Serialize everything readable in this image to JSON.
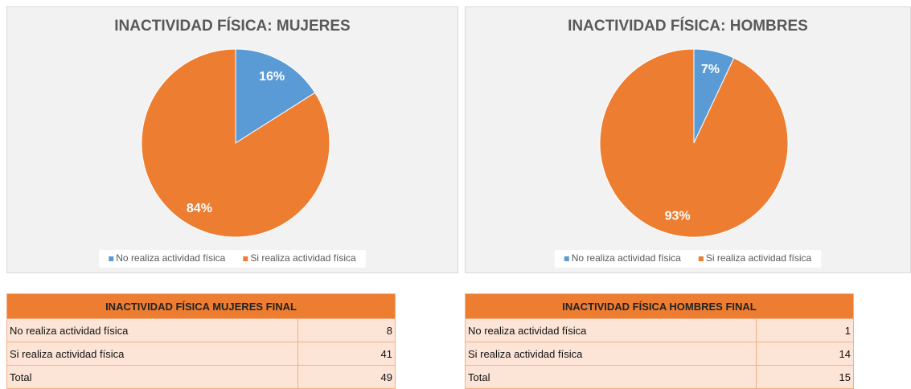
{
  "chart_data": [
    {
      "type": "pie",
      "title": "INACTIVIDAD FÍSICA: MUJERES",
      "categories": [
        "No realiza actividad física",
        "Si realiza actividad física"
      ],
      "values": [
        16,
        84
      ],
      "value_labels": [
        "16%",
        "84%"
      ],
      "colors": [
        "#5b9bd5",
        "#ed7d31"
      ],
      "legend": "bottom"
    },
    {
      "type": "pie",
      "title": "INACTIVIDAD FÍSICA: HOMBRES",
      "categories": [
        "No realiza actividad física",
        "Si realiza actividad física"
      ],
      "values": [
        7,
        93
      ],
      "value_labels": [
        "7%",
        "93%"
      ],
      "colors": [
        "#5b9bd5",
        "#ed7d31"
      ],
      "legend": "bottom"
    }
  ],
  "tables": [
    {
      "title": "INACTIVIDAD FÍSICA MUJERES FINAL",
      "rows": [
        [
          "No realiza actividad física",
          8
        ],
        [
          "Si realiza actividad física",
          41
        ],
        [
          "Total",
          49
        ]
      ]
    },
    {
      "title": "INACTIVIDAD FÍSICA HOMBRES FINAL",
      "rows": [
        [
          "No realiza actividad física",
          1
        ],
        [
          "Si realiza actividad física",
          14
        ],
        [
          "Total",
          15
        ]
      ]
    }
  ]
}
